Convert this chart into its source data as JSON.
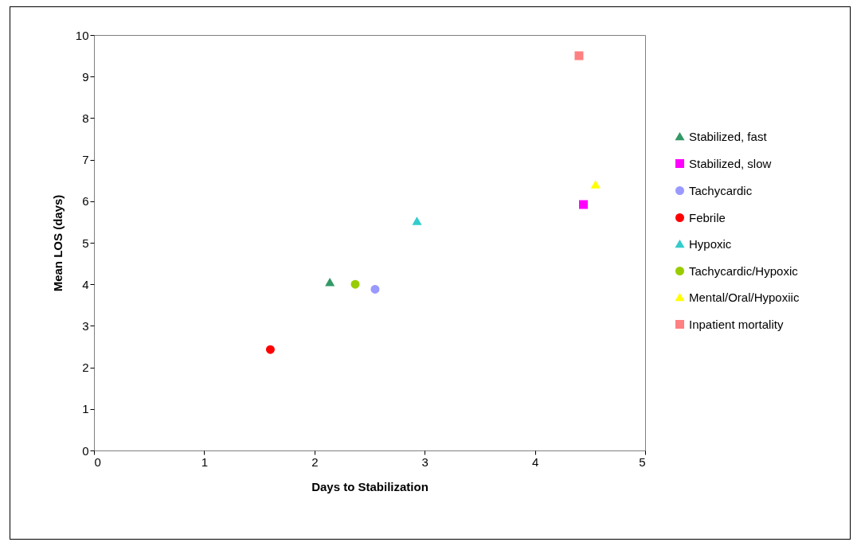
{
  "chart_data": {
    "type": "scatter",
    "xlabel": "Days to Stabilization",
    "ylabel": "Mean LOS (days)",
    "xlim": [
      0,
      5
    ],
    "ylim": [
      0,
      10
    ],
    "xticks": [
      0,
      1,
      2,
      3,
      4,
      5
    ],
    "yticks": [
      0,
      1,
      2,
      3,
      4,
      5,
      6,
      7,
      8,
      9,
      10
    ],
    "grid": false,
    "legend": "right",
    "series": [
      {
        "name": "Stabilized, fast",
        "color": "#339966",
        "marker": "triangle",
        "x": [
          2.14
        ],
        "values": [
          4.05
        ]
      },
      {
        "name": "Stabilized, slow",
        "color": "#ff00ff",
        "marker": "square",
        "x": [
          4.44
        ],
        "values": [
          5.92
        ]
      },
      {
        "name": "Tachycardic",
        "color": "#9999ff",
        "marker": "circle",
        "x": [
          2.55
        ],
        "values": [
          3.88
        ]
      },
      {
        "name": "Febrile",
        "color": "#ff0000",
        "marker": "circle",
        "x": [
          1.6
        ],
        "values": [
          2.43
        ]
      },
      {
        "name": "Hypoxic",
        "color": "#33cccc",
        "marker": "triangle",
        "x": [
          2.93
        ],
        "values": [
          5.52
        ]
      },
      {
        "name": "Tachycardic/Hypoxic",
        "color": "#99cc00",
        "marker": "circle",
        "x": [
          2.37
        ],
        "values": [
          4.0
        ]
      },
      {
        "name": "Mental/Oral/Hypoxiic",
        "color": "#ffff00",
        "marker": "triangle",
        "x": [
          4.55
        ],
        "values": [
          6.4
        ]
      },
      {
        "name": "Inpatient mortality",
        "color": "#ff8080",
        "marker": "square",
        "x": [
          4.4
        ],
        "values": [
          9.5
        ]
      }
    ]
  }
}
